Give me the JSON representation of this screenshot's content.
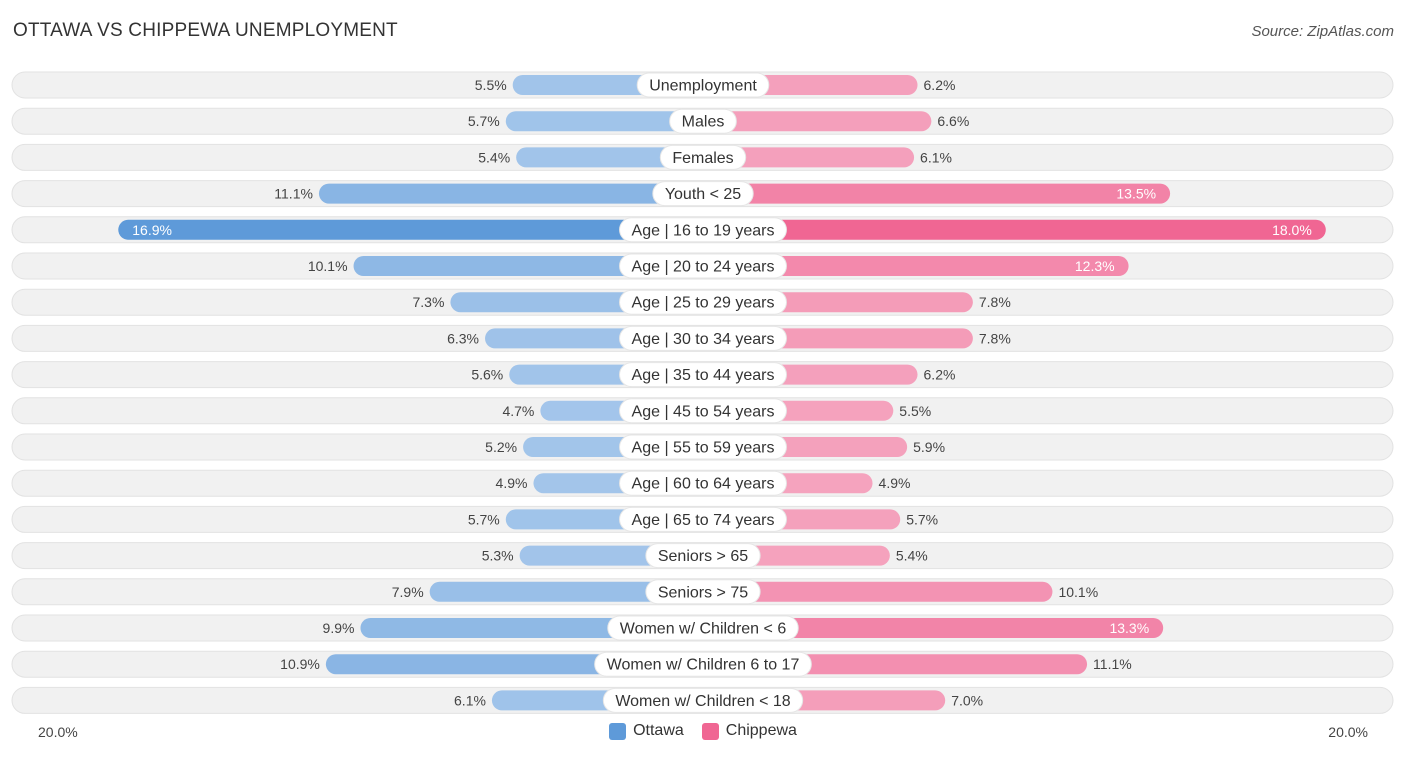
{
  "header": {
    "title": "OTTAWA VS CHIPPEWA UNEMPLOYMENT",
    "source": "Source: ZipAtlas.com"
  },
  "axis": {
    "left_label": "20.0%",
    "right_label": "20.0%"
  },
  "legend": {
    "ottawa": "Ottawa",
    "chippewa": "Chippewa"
  },
  "colors": {
    "ottawa_strong": "#5e9ad9",
    "ottawa_light": "#a9c9ec",
    "chippewa_strong": "#f06693",
    "chippewa_light": "#f5a8c1",
    "row_bg": "#f1f1f1"
  },
  "chart_data": {
    "type": "bar",
    "orientation": "horizontal-diverging",
    "title": "OTTAWA VS CHIPPEWA UNEMPLOYMENT",
    "xlim": [
      -20,
      20
    ],
    "unit": "%",
    "categories": [
      "Unemployment",
      "Males",
      "Females",
      "Youth < 25",
      "Age | 16 to 19 years",
      "Age | 20 to 24 years",
      "Age | 25 to 29 years",
      "Age | 30 to 34 years",
      "Age | 35 to 44 years",
      "Age | 45 to 54 years",
      "Age | 55 to 59 years",
      "Age | 60 to 64 years",
      "Age | 65 to 74 years",
      "Seniors > 65",
      "Seniors > 75",
      "Women w/ Children < 6",
      "Women w/ Children 6 to 17",
      "Women w/ Children < 18"
    ],
    "series": [
      {
        "name": "Ottawa",
        "values": [
          5.5,
          5.7,
          5.4,
          11.1,
          16.9,
          10.1,
          7.3,
          6.3,
          5.6,
          4.7,
          5.2,
          4.9,
          5.7,
          5.3,
          7.9,
          9.9,
          10.9,
          6.1
        ],
        "labels": [
          "5.5%",
          "5.7%",
          "5.4%",
          "11.1%",
          "16.9%",
          "10.1%",
          "7.3%",
          "6.3%",
          "5.6%",
          "4.7%",
          "5.2%",
          "4.9%",
          "5.7%",
          "5.3%",
          "7.9%",
          "9.9%",
          "10.9%",
          "6.1%"
        ]
      },
      {
        "name": "Chippewa",
        "values": [
          6.2,
          6.6,
          6.1,
          13.5,
          18.0,
          12.3,
          7.8,
          7.8,
          6.2,
          5.5,
          5.9,
          4.9,
          5.7,
          5.4,
          10.1,
          13.3,
          11.1,
          7.0
        ],
        "labels": [
          "6.2%",
          "6.6%",
          "6.1%",
          "13.5%",
          "18.0%",
          "12.3%",
          "7.8%",
          "7.8%",
          "6.2%",
          "5.5%",
          "5.9%",
          "4.9%",
          "5.7%",
          "5.4%",
          "10.1%",
          "13.3%",
          "11.1%",
          "7.0%"
        ]
      }
    ]
  }
}
